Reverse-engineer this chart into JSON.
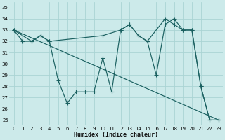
{
  "xlabel": "Humidex (Indice chaleur)",
  "xlim": [
    -0.5,
    23.5
  ],
  "ylim": [
    24.5,
    35.5
  ],
  "xticks": [
    0,
    1,
    2,
    3,
    4,
    5,
    6,
    7,
    8,
    9,
    10,
    11,
    12,
    13,
    14,
    15,
    16,
    17,
    18,
    19,
    20,
    21,
    22,
    23
  ],
  "yticks": [
    25,
    26,
    27,
    28,
    29,
    30,
    31,
    32,
    33,
    34,
    35
  ],
  "bg_color": "#cceaea",
  "line_color": "#1a6060",
  "grid_color": "#aad4d4",
  "line1_x": [
    0,
    1,
    2,
    3,
    4,
    5,
    6,
    7,
    8,
    9,
    10,
    11,
    12,
    13,
    14,
    15,
    16,
    17,
    18,
    19,
    20,
    21,
    22,
    23
  ],
  "line1_y": [
    33,
    32,
    32,
    32.5,
    32,
    28.5,
    26.5,
    27.5,
    27.5,
    27.5,
    30.5,
    27.5,
    33,
    33.5,
    32.5,
    32,
    29,
    33.5,
    34,
    33,
    33,
    28,
    25,
    25
  ],
  "line2_x": [
    0,
    2,
    3,
    4,
    10,
    12,
    13,
    14,
    15,
    17,
    18,
    19,
    20,
    21,
    22,
    23
  ],
  "line2_y": [
    33,
    32,
    32.5,
    32,
    32.5,
    33,
    33.5,
    32.5,
    32,
    34,
    33.5,
    33,
    33,
    28,
    25,
    25
  ],
  "line3_x": [
    0,
    23
  ],
  "line3_y": [
    33,
    25
  ]
}
